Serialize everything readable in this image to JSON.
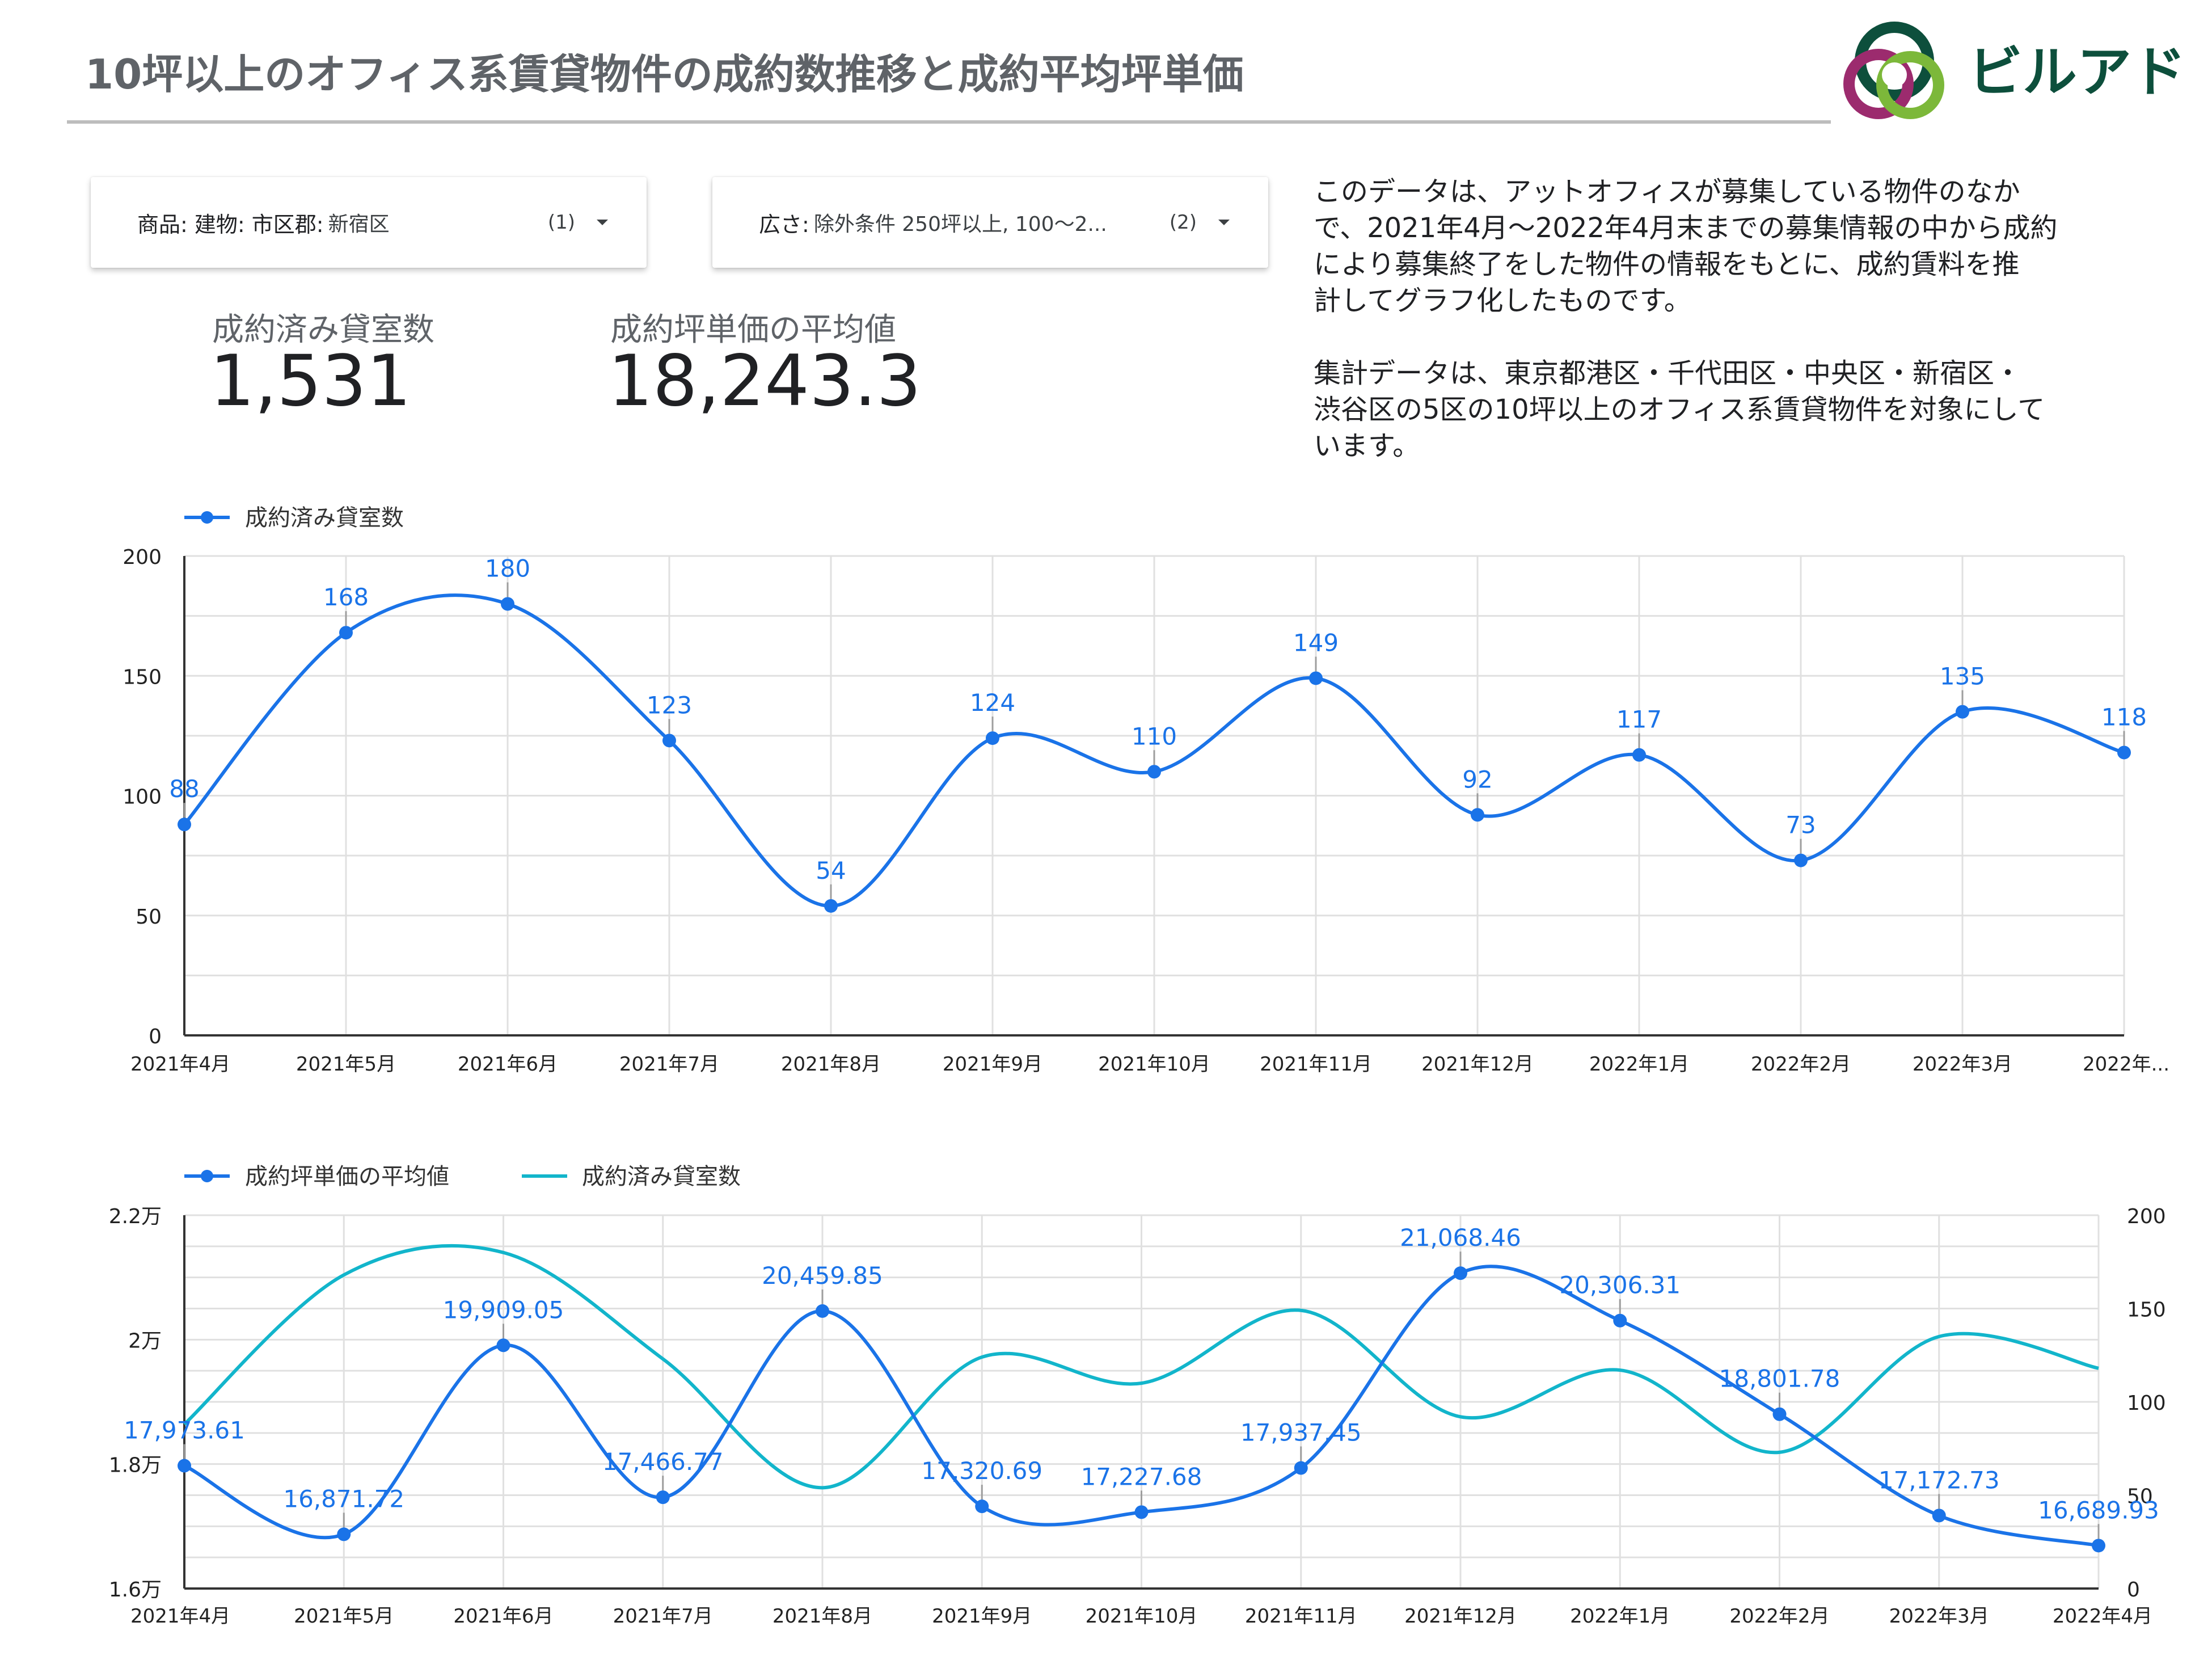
{
  "header": {
    "title": "10坪以上のオフィス系賃貸物件の成約数推移と成約平均坪単価",
    "logo_text": "ビルアド"
  },
  "filters": [
    {
      "label": "商品: 建物: 市区郡:",
      "value": "新宿区",
      "count": "(1)"
    },
    {
      "label": "広さ:",
      "value": "除外条件 250坪以上, 100～2...",
      "count": "(2)"
    }
  ],
  "metrics": [
    {
      "label": "成約済み貸室数",
      "value": "1,531"
    },
    {
      "label": "成約坪単価の平均値",
      "value": "18,243.3"
    }
  ],
  "description": {
    "paragraph1": "このデータは、アットオフィスが募集している物件のなか\nで、2021年4月～2022年4月末までの募集情報の中から成約\nにより募集終了をした物件の情報をもとに、成約賃料を推\n計してグラフ化したものです。",
    "paragraph2": "集計データは、東京都港区・千代田区・中央区・新宿区・\n渋谷区の5区の10坪以上のオフィス系賃貸物件を対象にして\nいます。"
  },
  "colors": {
    "primary": "#1a73e8",
    "secondary": "#12b5cb",
    "grid": "#e0e0e0",
    "axis": "#333333"
  },
  "chart_data": [
    {
      "type": "line",
      "categories": [
        "2021年4月",
        "2021年5月",
        "2021年6月",
        "2021年7月",
        "2021年8月",
        "2021年9月",
        "2021年10月",
        "2021年11月",
        "2021年12月",
        "2022年1月",
        "2022年2月",
        "2022年3月",
        "2022年..."
      ],
      "series": [
        {
          "name": "成約済み貸室数",
          "values": [
            88,
            168,
            180,
            123,
            54,
            124,
            110,
            149,
            92,
            117,
            73,
            135,
            118
          ],
          "color": "#1a73e8"
        }
      ],
      "ylim": [
        0,
        200
      ],
      "yticks": [
        0,
        50,
        100,
        150,
        200
      ],
      "ytick_labels": [
        "0",
        "50",
        "100",
        "150",
        "200"
      ],
      "data_labels": [
        "88",
        "168",
        "180",
        "123",
        "54",
        "124",
        "110",
        "149",
        "92",
        "117",
        "73",
        "135",
        "118"
      ],
      "legend": "top-left",
      "grid": true,
      "smooth": true
    },
    {
      "type": "line",
      "categories": [
        "2021年4月",
        "2021年5月",
        "2021年6月",
        "2021年7月",
        "2021年8月",
        "2021年9月",
        "2021年10月",
        "2021年11月",
        "2021年12月",
        "2022年1月",
        "2022年2月",
        "2022年3月",
        "2022年4月"
      ],
      "series": [
        {
          "name": "成約坪単価の平均値",
          "axis": "left",
          "color": "#1a73e8",
          "values": [
            17973.61,
            16871.72,
            19909.05,
            17466.77,
            20459.85,
            17320.69,
            17227.68,
            17937.45,
            21068.46,
            20306.31,
            18801.78,
            17172.73,
            16689.93
          ],
          "data_labels": [
            "17,973.61",
            "16,871.72",
            "19,909.05",
            "17,466.77",
            "20,459.85",
            "17,320.69",
            "17,227.68",
            "17,937.45",
            "21,068.46",
            "20,306.31",
            "18,801.78",
            "17,172.73",
            "16,689.93"
          ]
        },
        {
          "name": "成約済み貸室数",
          "axis": "right",
          "color": "#12b5cb",
          "values": [
            88,
            168,
            180,
            123,
            54,
            124,
            110,
            149,
            92,
            117,
            73,
            135,
            118
          ]
        }
      ],
      "ylim_left": [
        16000,
        22000
      ],
      "yticks_left": [
        16000,
        18000,
        20000,
        22000
      ],
      "ytick_labels_left": [
        "1.6万",
        "1.8万",
        "2万",
        "2.2万"
      ],
      "ylim_right": [
        0,
        200
      ],
      "yticks_right": [
        0,
        50,
        100,
        150,
        200
      ],
      "ytick_labels_right": [
        "0",
        "50",
        "100",
        "150",
        "200"
      ],
      "legend": "top-left",
      "grid": true,
      "smooth": true
    }
  ]
}
